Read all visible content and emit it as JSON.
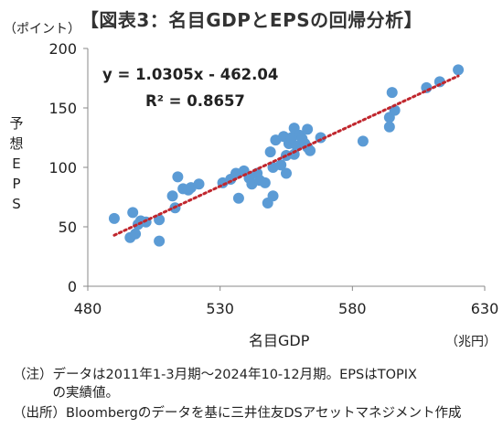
{
  "title": "【図表3：名目GDPとEPSの回帰分析】",
  "notes": [
    "（注）データは2011年1-3月期～2024年10-12月期。EPSはTOPIX",
    "　　　の実績値。",
    "（出所）Bloombergのデータを基に三井住友DSアセットマネジメント作成"
  ],
  "chart_data": {
    "type": "scatter",
    "xlabel": "名目GDP",
    "x_unit": "（兆円）",
    "ylabel": "予想EPS",
    "y_unit": "（ポイント）",
    "xlim": [
      480,
      630
    ],
    "ylim": [
      0,
      200
    ],
    "x_ticks": [
      480,
      530,
      580,
      630
    ],
    "y_ticks": [
      0,
      50,
      100,
      150,
      200
    ],
    "grid": false,
    "point_color": "#5b9bd5",
    "trend_color": "#c0262d",
    "equation": "y = 1.0305x - 462.04",
    "r_squared": "R² = 0.8657",
    "trendline": {
      "slope": 1.0305,
      "intercept": -462.04,
      "x_range": [
        490,
        620
      ]
    },
    "points": [
      [
        490,
        57
      ],
      [
        496,
        41
      ],
      [
        497,
        62
      ],
      [
        498,
        44
      ],
      [
        499,
        52
      ],
      [
        500,
        55
      ],
      [
        502,
        54
      ],
      [
        507,
        38
      ],
      [
        507,
        56
      ],
      [
        512,
        76
      ],
      [
        513,
        66
      ],
      [
        514,
        92
      ],
      [
        516,
        82
      ],
      [
        518,
        81
      ],
      [
        519,
        83
      ],
      [
        522,
        86
      ],
      [
        531,
        87
      ],
      [
        534,
        90
      ],
      [
        536,
        95
      ],
      [
        537,
        74
      ],
      [
        539,
        97
      ],
      [
        541,
        91
      ],
      [
        542,
        86
      ],
      [
        544,
        95
      ],
      [
        545,
        89
      ],
      [
        547,
        87
      ],
      [
        548,
        70
      ],
      [
        549,
        113
      ],
      [
        550,
        76
      ],
      [
        550,
        100
      ],
      [
        551,
        123
      ],
      [
        553,
        102
      ],
      [
        554,
        126
      ],
      [
        555,
        95
      ],
      [
        555,
        110
      ],
      [
        556,
        120
      ],
      [
        557,
        125
      ],
      [
        558,
        133
      ],
      [
        558,
        111
      ],
      [
        559,
        118
      ],
      [
        560,
        127
      ],
      [
        561,
        124
      ],
      [
        562,
        120
      ],
      [
        563,
        117
      ],
      [
        563,
        132
      ],
      [
        564,
        114
      ],
      [
        568,
        125
      ],
      [
        584,
        122
      ],
      [
        594,
        142
      ],
      [
        594,
        134
      ],
      [
        595,
        163
      ],
      [
        596,
        148
      ],
      [
        608,
        167
      ],
      [
        613,
        172
      ],
      [
        620,
        182
      ]
    ]
  }
}
